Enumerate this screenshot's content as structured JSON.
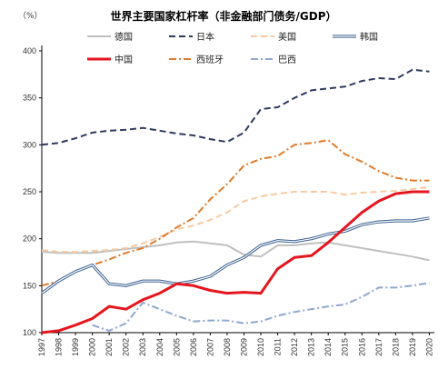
{
  "chart_data": {
    "type": "line",
    "title": "世界主要国家杠杆率（非金融部门债务/GDP）",
    "unit_label": "（%）",
    "xlabel": "",
    "ylabel": "",
    "ylim": [
      100,
      400
    ],
    "yticks": [
      100,
      150,
      200,
      250,
      300,
      350,
      400
    ],
    "xlim": [
      1997,
      2020.3
    ],
    "xticks": [
      1997,
      1998,
      1999,
      2000,
      2001,
      2002,
      2003,
      2004,
      2005,
      2006,
      2007,
      2008,
      2009,
      2010,
      2011,
      2012,
      2013,
      2014,
      2015,
      2016,
      2017,
      2018,
      2019,
      2020
    ],
    "grid": false,
    "legend_position": "top",
    "series": [
      {
        "name": "德国",
        "color": "#BFBFBF",
        "style": "solid",
        "width": 2,
        "x": [
          1997,
          1998,
          1999,
          2000,
          2001,
          2002,
          2003,
          2004,
          2005,
          2006,
          2007,
          2008,
          2009,
          2010,
          2011,
          2012,
          2013,
          2014,
          2015,
          2016,
          2017,
          2018,
          2019,
          2020
        ],
        "y": [
          186,
          185,
          185,
          185,
          187,
          189,
          191,
          193,
          196,
          197,
          195,
          193,
          183,
          181,
          193,
          193,
          195,
          196,
          193,
          190,
          187,
          184,
          181,
          177
        ]
      },
      {
        "name": "日本",
        "color": "#2F3A5E",
        "style": "dash",
        "width": 2,
        "x": [
          1997,
          1998,
          1999,
          2000,
          2001,
          2002,
          2003,
          2004,
          2005,
          2006,
          2007,
          2008,
          2009,
          2010,
          2011,
          2012,
          2013,
          2014,
          2015,
          2016,
          2017,
          2018,
          2019,
          2020
        ],
        "y": [
          300,
          302,
          307,
          313,
          315,
          316,
          318,
          315,
          312,
          310,
          306,
          303,
          313,
          338,
          340,
          350,
          358,
          360,
          362,
          368,
          371,
          370,
          380,
          378
        ]
      },
      {
        "name": "美国",
        "color": "#F8C9A0",
        "style": "dash",
        "width": 2,
        "x": [
          1997,
          1998,
          1999,
          2000,
          2001,
          2002,
          2003,
          2004,
          2005,
          2006,
          2007,
          2008,
          2009,
          2010,
          2011,
          2012,
          2013,
          2014,
          2015,
          2016,
          2017,
          2018,
          2019,
          2020
        ],
        "y": [
          188,
          186,
          186,
          187,
          188,
          190,
          195,
          202,
          210,
          214,
          220,
          228,
          240,
          245,
          248,
          250,
          250,
          250,
          247,
          249,
          250,
          251,
          253,
          255
        ]
      },
      {
        "name": "韩国",
        "color": "#3A5F8F",
        "style": "double",
        "width": 1.2,
        "x": [
          1997,
          1998,
          1999,
          2000,
          2001,
          2002,
          2003,
          2004,
          2005,
          2006,
          2007,
          2008,
          2009,
          2010,
          2011,
          2012,
          2013,
          2014,
          2015,
          2016,
          2017,
          2018,
          2019,
          2020
        ],
        "y": [
          142,
          155,
          165,
          172,
          152,
          150,
          155,
          155,
          152,
          155,
          160,
          172,
          180,
          193,
          198,
          197,
          200,
          205,
          208,
          215,
          218,
          219,
          219,
          222
        ]
      },
      {
        "name": "中国",
        "color": "#E5161E",
        "style": "solid",
        "width": 3,
        "x": [
          1997,
          1998,
          1999,
          2000,
          2001,
          2002,
          2003,
          2004,
          2005,
          2006,
          2007,
          2008,
          2009,
          2010,
          2011,
          2012,
          2013,
          2014,
          2015,
          2016,
          2017,
          2018,
          2019,
          2020
        ],
        "y": [
          100,
          102,
          108,
          115,
          128,
          125,
          135,
          142,
          152,
          150,
          145,
          142,
          143,
          142,
          168,
          180,
          182,
          196,
          212,
          228,
          240,
          248,
          250,
          250
        ]
      },
      {
        "name": "西班牙",
        "color": "#E07B2A",
        "style": "dashdot",
        "width": 2,
        "x": [
          1997,
          1998,
          1999,
          2000,
          2001,
          2002,
          2003,
          2004,
          2005,
          2006,
          2007,
          2008,
          2009,
          2010,
          2011,
          2012,
          2013,
          2014,
          2015,
          2016,
          2017,
          2018,
          2019,
          2020
        ],
        "y": [
          150,
          155,
          165,
          172,
          178,
          185,
          190,
          200,
          212,
          222,
          242,
          258,
          278,
          285,
          288,
          300,
          302,
          305,
          290,
          282,
          272,
          265,
          262,
          262
        ]
      },
      {
        "name": "巴西",
        "color": "#8FA7CF",
        "style": "dashdot",
        "width": 2,
        "x": [
          2000,
          2001,
          2002,
          2003,
          2004,
          2005,
          2006,
          2007,
          2008,
          2009,
          2010,
          2011,
          2012,
          2013,
          2014,
          2015,
          2016,
          2017,
          2018,
          2019,
          2020
        ],
        "y": [
          108,
          102,
          110,
          132,
          125,
          118,
          112,
          113,
          113,
          110,
          112,
          118,
          122,
          125,
          128,
          130,
          138,
          148,
          148,
          150,
          153
        ]
      }
    ]
  }
}
